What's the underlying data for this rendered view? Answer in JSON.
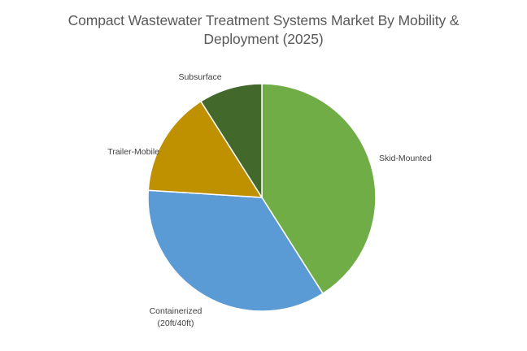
{
  "chart_data": {
    "type": "pie",
    "title_lines": [
      "Compact Wastewater Treatment Systems Market By Mobility &",
      "Deployment (2025)"
    ],
    "legend": "none",
    "categories": [
      "Skid-Mounted",
      "Containerized (20ft/40ft)",
      "Trailer-Mobile",
      "Subsurface"
    ],
    "label_lines": [
      [
        "Skid-Mounted"
      ],
      [
        "Containerized",
        "(20ft/40ft)"
      ],
      [
        "Trailer-Mobile"
      ],
      [
        "Subsurface"
      ]
    ],
    "values": [
      41,
      35,
      15,
      9
    ],
    "colors": [
      "#70ad47",
      "#5b9bd5",
      "#bf9000",
      "#43682b"
    ],
    "start_angle_deg": 0,
    "direction": "clockwise"
  }
}
